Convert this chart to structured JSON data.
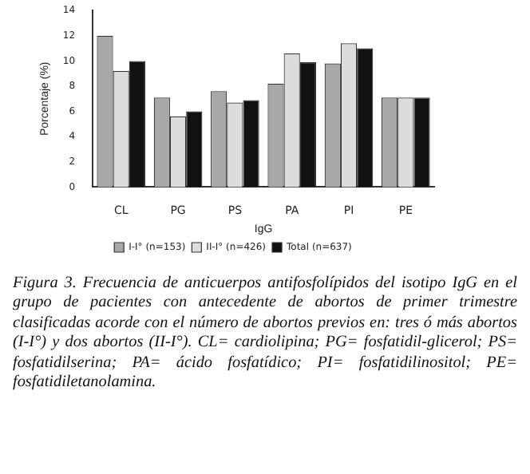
{
  "chart_data": {
    "type": "bar",
    "xlabel": "IgG",
    "ylabel": "Porcentaje (%)",
    "categories": [
      "CL",
      "PG",
      "PS",
      "PA",
      "PI",
      "PE"
    ],
    "series": [
      {
        "name": "I-I° (n=153)",
        "color": "#a8a8a8",
        "values": [
          12,
          7.1,
          7.6,
          8.2,
          9.8,
          7.1
        ]
      },
      {
        "name": "II-I° (n=426)",
        "color": "#dcdcdc",
        "values": [
          9.2,
          5.6,
          6.7,
          10.6,
          11.4,
          7.1
        ]
      },
      {
        "name": "Total (n=637)",
        "color": "#111111",
        "values": [
          10,
          6,
          6.9,
          9.9,
          11,
          7.1
        ]
      }
    ],
    "ylim": [
      0,
      14
    ],
    "yticks": [
      0,
      2,
      4,
      6,
      8,
      10,
      12,
      14
    ],
    "grid": false,
    "legend": "bottom",
    "annotations": [
      "Figura 3. Frecuencia de anticuerpos antifosfolípidos del isotipo IgG en el grupo de pacientes con antecedente de abortos de primer trimestre clasificadas acorde con el número de abortos previos en: tres ó más abortos (I-I°) y dos abortos (II-I°). CL= cardiolipina; PG= fosfatidil-glicerol; PS= fosfatidilserina; PA= ácido fosfatídico; PI= fosfatidilinositol; PE= fosfatidiletanolamina."
    ]
  }
}
